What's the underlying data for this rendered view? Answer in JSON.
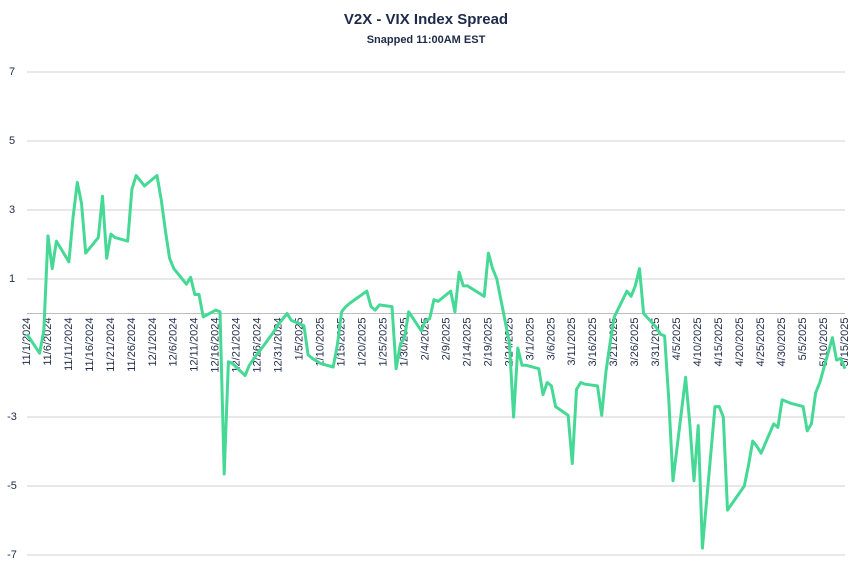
{
  "chart_data": {
    "type": "line",
    "title": "V2X - VIX Index Spread",
    "subtitle": "Snapped 11:00AM EST",
    "color": "#45d995",
    "x": [
      "11/1/2024",
      "11/4/2024",
      "11/5/2024",
      "11/6/2024",
      "11/7/2024",
      "11/8/2024",
      "11/11/2024",
      "11/12/2024",
      "11/13/2024",
      "11/14/2024",
      "11/15/2024",
      "11/18/2024",
      "11/19/2024",
      "11/20/2024",
      "11/21/2024",
      "11/22/2024",
      "11/25/2024",
      "11/26/2024",
      "11/27/2024",
      "11/29/2024",
      "12/2/2024",
      "12/3/2024",
      "12/4/2024",
      "12/5/2024",
      "12/6/2024",
      "12/9/2024",
      "12/10/2024",
      "12/11/2024",
      "12/12/2024",
      "12/13/2024",
      "12/16/2024",
      "12/17/2024",
      "12/18/2024",
      "12/19/2024",
      "12/20/2024",
      "12/23/2024",
      "12/24/2024",
      "12/26/2024",
      "12/27/2024",
      "12/30/2024",
      "12/31/2024",
      "1/2/2025",
      "1/3/2025",
      "1/6/2025",
      "1/7/2025",
      "1/8/2025",
      "1/10/2025",
      "1/13/2025",
      "1/14/2025",
      "1/15/2025",
      "1/16/2025",
      "1/17/2025",
      "1/21/2025",
      "1/22/2025",
      "1/23/2025",
      "1/24/2025",
      "1/27/2025",
      "1/28/2025",
      "1/29/2025",
      "1/30/2025",
      "1/31/2025",
      "2/3/2025",
      "2/4/2025",
      "2/5/2025",
      "2/6/2025",
      "2/7/2025",
      "2/10/2025",
      "2/11/2025",
      "2/12/2025",
      "2/13/2025",
      "2/14/2025",
      "2/18/2025",
      "2/19/2025",
      "2/20/2025",
      "2/21/2025",
      "2/24/2025",
      "2/25/2025",
      "2/26/2025",
      "2/27/2025",
      "2/28/2025",
      "3/3/2025",
      "3/4/2025",
      "3/5/2025",
      "3/6/2025",
      "3/7/2025",
      "3/10/2025",
      "3/11/2025",
      "3/12/2025",
      "3/13/2025",
      "3/14/2025",
      "3/17/2025",
      "3/18/2025",
      "3/19/2025",
      "3/20/2025",
      "3/21/2025",
      "3/24/2025",
      "3/25/2025",
      "3/26/2025",
      "3/27/2025",
      "3/28/2025",
      "3/31/2025",
      "4/1/2025",
      "4/2/2025",
      "4/3/2025",
      "4/4/2025",
      "4/7/2025",
      "4/8/2025",
      "4/9/2025",
      "4/10/2025",
      "4/11/2025",
      "4/14/2025",
      "4/15/2025",
      "4/16/2025",
      "4/17/2025",
      "4/21/2025",
      "4/22/2025",
      "4/23/2025",
      "4/24/2025",
      "4/25/2025",
      "4/28/2025",
      "4/29/2025",
      "4/30/2025",
      "5/1/2025",
      "5/2/2025",
      "5/5/2025",
      "5/6/2025",
      "5/7/2025",
      "5/8/2025",
      "5/9/2025",
      "5/12/2025",
      "5/13/2025",
      "5/14/2025",
      "5/15/2025"
    ],
    "values": [
      -0.6,
      -1.15,
      -0.5,
      2.25,
      1.3,
      2.1,
      1.5,
      2.8,
      3.8,
      3.2,
      1.75,
      2.2,
      3.4,
      1.6,
      2.3,
      2.2,
      2.1,
      3.6,
      4.0,
      3.7,
      4.0,
      3.3,
      2.4,
      1.6,
      1.3,
      0.85,
      1.05,
      0.55,
      0.55,
      -0.1,
      0.1,
      0.05,
      -4.65,
      -1.4,
      -1.45,
      -1.8,
      -1.5,
      -1.15,
      -1.0,
      -0.5,
      -0.3,
      0.0,
      -0.2,
      -0.35,
      -1.2,
      -1.3,
      -1.45,
      -1.55,
      -0.9,
      0.05,
      0.2,
      0.3,
      0.65,
      0.2,
      0.1,
      0.25,
      0.2,
      -1.6,
      -0.9,
      -0.7,
      0.05,
      -0.5,
      -0.2,
      -0.15,
      0.4,
      0.35,
      0.65,
      0.05,
      1.2,
      0.8,
      0.8,
      0.5,
      1.75,
      1.3,
      1.0,
      -0.85,
      -3.0,
      -1.0,
      -1.5,
      -1.5,
      -1.6,
      -2.35,
      -2.0,
      -2.1,
      -2.7,
      -2.95,
      -4.35,
      -2.2,
      -2.0,
      -2.05,
      -2.1,
      -2.95,
      -1.7,
      -0.85,
      -0.1,
      0.65,
      0.5,
      0.8,
      1.3,
      0.0,
      -0.4,
      -0.6,
      -0.65,
      -2.5,
      -4.85,
      -1.85,
      -3.2,
      -4.85,
      -3.25,
      -6.8,
      -2.7,
      -2.7,
      -3.0,
      -5.7,
      -5.0,
      -4.4,
      -3.7,
      -3.85,
      -4.05,
      -3.2,
      -3.3,
      -2.5,
      -2.55,
      -2.6,
      -2.7,
      -3.4,
      -3.2,
      -2.3,
      -2.0,
      -0.7,
      -1.35,
      -1.3,
      -1.6
    ],
    "xlim": [
      "11/1/2024",
      "5/15/2025"
    ],
    "xticks": [
      "11/1/2024",
      "11/6/2024",
      "11/11/2024",
      "11/16/2024",
      "11/21/2024",
      "11/26/2024",
      "12/1/2024",
      "12/6/2024",
      "12/11/2024",
      "12/16/2024",
      "12/21/2024",
      "12/26/2024",
      "12/31/2024",
      "1/5/2025",
      "1/10/2025",
      "1/15/2025",
      "1/20/2025",
      "1/25/2025",
      "1/30/2025",
      "2/4/2025",
      "2/9/2025",
      "2/14/2025",
      "2/19/2025",
      "2/24/2025",
      "3/1/2025",
      "3/6/2025",
      "3/11/2025",
      "3/16/2025",
      "3/21/2025",
      "3/26/2025",
      "3/31/2025",
      "4/5/2025",
      "4/10/2025",
      "4/15/2025",
      "4/20/2025",
      "4/25/2025",
      "4/30/2025",
      "5/5/2025",
      "5/10/2025",
      "5/15/2025"
    ],
    "ylim": [
      -7,
      7
    ],
    "yticks": [
      -7,
      -5,
      -3,
      1,
      3,
      5,
      7
    ],
    "grid": true
  }
}
